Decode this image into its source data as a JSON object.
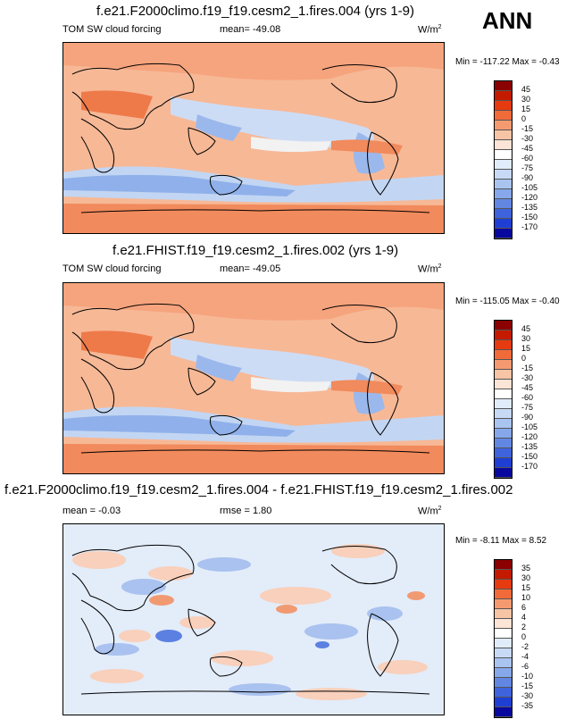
{
  "season": "ANN",
  "colors": {
    "scale": [
      "#8b0000",
      "#c41a00",
      "#e63a10",
      "#f06a3a",
      "#f59a70",
      "#f8c4a6",
      "#fce4d6",
      "#ffffff",
      "#e1ecfa",
      "#c7d9f5",
      "#aac4f0",
      "#86a8ea",
      "#6287e3",
      "#3e63dc",
      "#1f3fd4",
      "#08089e"
    ],
    "diff": [
      "#8b0000",
      "#c41a00",
      "#e63a10",
      "#f06a3a",
      "#f59a70",
      "#f8c4a6",
      "#fce4d6",
      "#ffffff",
      "#e1ecfa",
      "#c7d9f5",
      "#aac4f0",
      "#86a8ea",
      "#6287e3",
      "#3e63dc",
      "#1f3fd4",
      "#08089e"
    ]
  },
  "panels": [
    {
      "title": "f.e21.F2000climo.f19_f19.cesm2_1.fires.004 (yrs 1-9)",
      "variable": "TOM SW cloud forcing",
      "mean_label": "mean=",
      "mean": "-49.08",
      "units": "W/m",
      "units_exp": "2",
      "min_label": "Min =",
      "min": "-117.22",
      "max_label": "Max =",
      "max": "-0.43",
      "ticks": [
        "45",
        "30",
        "15",
        "0",
        "-15",
        "-30",
        "-45",
        "-60",
        "-75",
        "-90",
        "-105",
        "-120",
        "-135",
        "-150",
        "-170"
      ]
    },
    {
      "title": "f.e21.FHIST.f19_f19.cesm2_1.fires.002 (yrs 1-9)",
      "variable": "TOM SW cloud forcing",
      "mean_label": "mean=",
      "mean": "-49.05",
      "units": "W/m",
      "units_exp": "2",
      "min_label": "Min =",
      "min": "-115.05",
      "max_label": "Max =",
      "max": "-0.40",
      "ticks": [
        "45",
        "30",
        "15",
        "0",
        "-15",
        "-30",
        "-45",
        "-60",
        "-75",
        "-90",
        "-105",
        "-120",
        "-135",
        "-150",
        "-170"
      ]
    },
    {
      "title": "f.e21.F2000climo.f19_f19.cesm2_1.fires.004 - f.e21.FHIST.f19_f19.cesm2_1.fires.002",
      "mean_label": "mean =",
      "mean": "-0.03",
      "rmse_label": "rmse =",
      "rmse": "1.80",
      "units": "W/m",
      "units_exp": "2",
      "min_label": "Min =",
      "min": "-8.11",
      "max_label": "Max =",
      "max": "8.52",
      "ticks": [
        "35",
        "30",
        "15",
        "10",
        "6",
        "4",
        "2",
        "0",
        "-2",
        "-4",
        "-6",
        "-10",
        "-15",
        "-30",
        "-35"
      ]
    }
  ]
}
